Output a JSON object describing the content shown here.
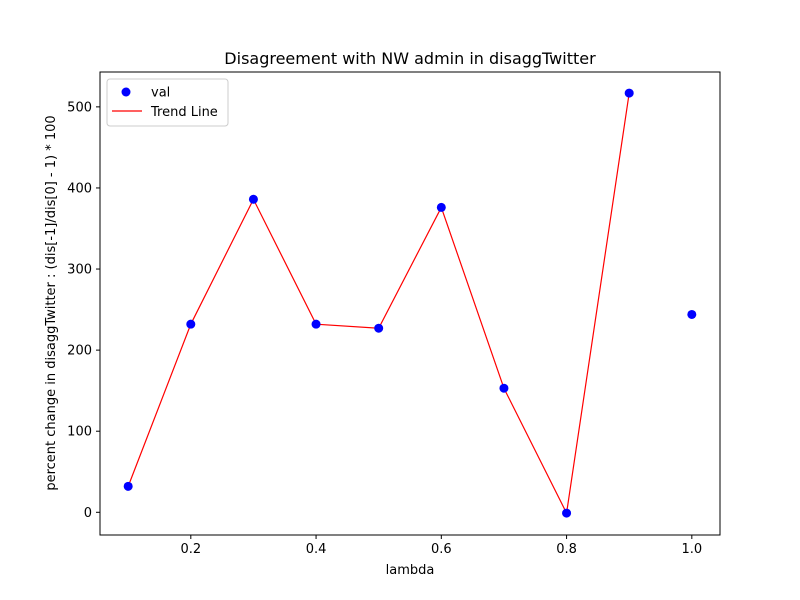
{
  "chart_data": {
    "type": "scatter",
    "title": "Disagreement with NW admin in disaggTwitter",
    "xlabel": "lambda",
    "ylabel": "percent change in disaggTwitter : (dis[-1]/dis[0] - 1) * 100",
    "xlim": [
      0.055,
      1.045
    ],
    "ylim": [
      -28,
      543
    ],
    "xticks": [
      0.2,
      0.4,
      0.6,
      0.8,
      1.0
    ],
    "xtick_labels": [
      "0.2",
      "0.4",
      "0.6",
      "0.8",
      "1.0"
    ],
    "yticks": [
      0,
      100,
      200,
      300,
      400,
      500
    ],
    "ytick_labels": [
      "0",
      "100",
      "200",
      "300",
      "400",
      "500"
    ],
    "grid": false,
    "legend_position": "top-left",
    "x": [
      0.1,
      0.2,
      0.3,
      0.4,
      0.5,
      0.6,
      0.7,
      0.8,
      0.9,
      1.0
    ],
    "series": [
      {
        "name": "val",
        "kind": "scatter",
        "color": "#0000ff",
        "values": [
          32,
          232,
          386,
          232,
          227,
          376,
          153,
          -1,
          517,
          244
        ]
      },
      {
        "name": "Trend Line",
        "kind": "line",
        "color": "#ff0000",
        "x": [
          0.1,
          0.2,
          0.3,
          0.4,
          0.5,
          0.6,
          0.7,
          0.8,
          0.9
        ],
        "values": [
          32,
          232,
          386,
          232,
          227,
          376,
          153,
          -1,
          517
        ]
      }
    ]
  }
}
